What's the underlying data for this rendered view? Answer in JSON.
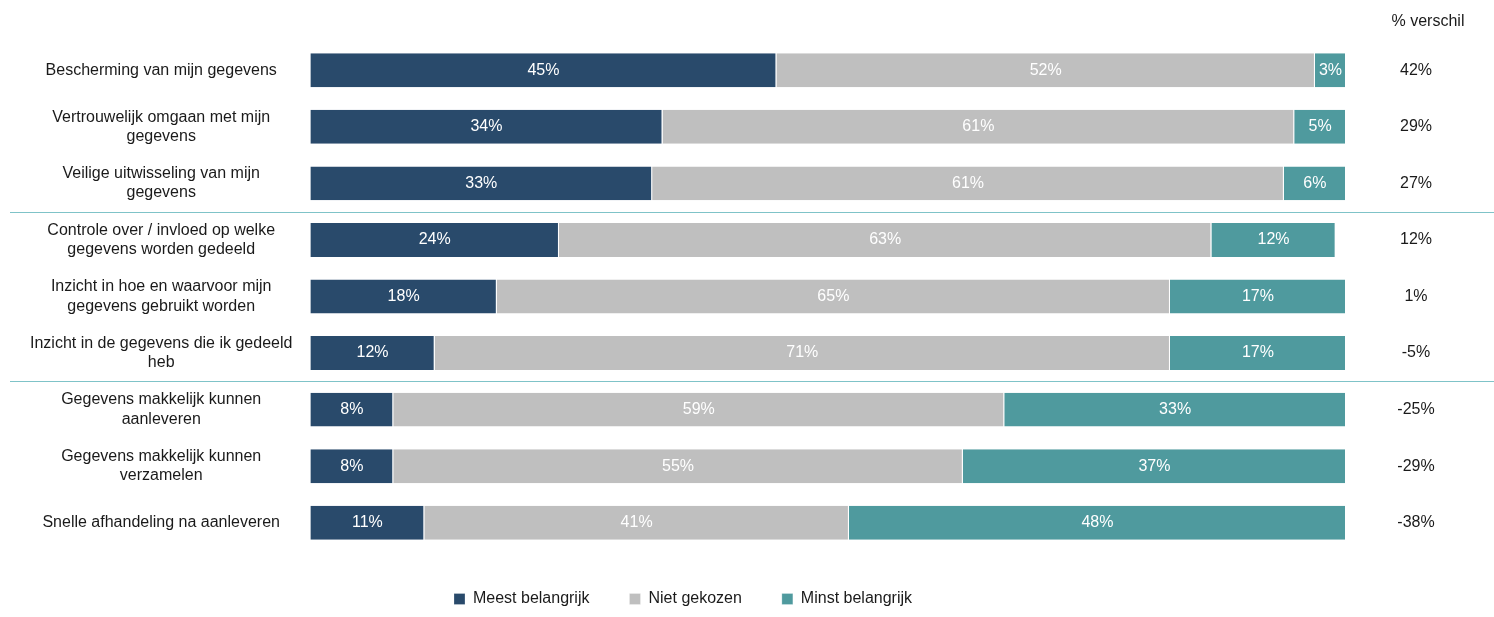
{
  "chart_data": {
    "type": "bar",
    "orientation": "horizontal",
    "stacked": true,
    "legend": "bottom",
    "tick_labels": "y",
    "categories": [
      "Bescherming van mijn gegevens",
      "Vertrouwelijk omgaan met mijn gegevens",
      "Veilige uitwisseling van mijn gegevens",
      "Controle over / invloed op welke gegevens worden gedeeld",
      "Inzicht in hoe en waarvoor mijn gegevens gebruikt worden",
      "Inzicht in de gegevens die ik gedeeld heb",
      "Gegevens makkelijk kunnen aanleveren",
      "Gegevens makkelijk kunnen verzamelen",
      "Snelle afhandeling na aanleveren"
    ],
    "series": [
      {
        "name": "Meest belangrijk",
        "color": "#294a6b",
        "values": [
          45,
          34,
          33,
          24,
          18,
          12,
          8,
          8,
          11
        ],
        "value_labels": [
          "45%",
          "34%",
          "33%",
          "24%",
          "18%",
          "12%",
          "8%",
          "8%",
          "11%"
        ]
      },
      {
        "name": "Niet gekozen",
        "color": "#bfbfbf",
        "values": [
          52,
          61,
          61,
          63,
          65,
          71,
          59,
          55,
          41
        ],
        "value_labels": [
          "52%",
          "61%",
          "61%",
          "63%",
          "65%",
          "71%",
          "59%",
          "55%",
          "41%"
        ]
      },
      {
        "name": "Minst belangrijk",
        "color": "#4f9a9e",
        "values": [
          3,
          5,
          6,
          12,
          17,
          17,
          33,
          37,
          48
        ],
        "value_labels": [
          "3%",
          "5%",
          "6%",
          "12%",
          "17%",
          "17%",
          "33%",
          "37%",
          "48%"
        ]
      }
    ],
    "annotations": [
      "% verschil",
      "42%",
      "29%",
      "27%",
      "12%",
      "1%",
      "-5%",
      "-25%",
      "-29%",
      "-38%"
    ]
  }
}
